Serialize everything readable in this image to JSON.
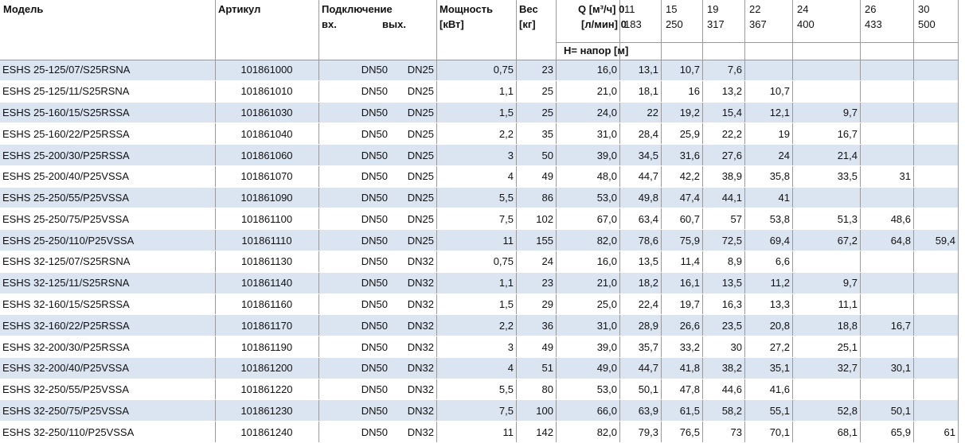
{
  "header": {
    "model": "Модель",
    "article": "Артикул",
    "connection": "Подключение",
    "conn_in": "вх.",
    "conn_out": "вых.",
    "power": "Мощность",
    "power_unit": "[кВт]",
    "weight": "Вес",
    "weight_unit": "[кг]",
    "q_m3h": "Q [м³/ч] 0",
    "q_lmin": "[л/мин] 0",
    "flow": [
      {
        "m3h": "11",
        "lmin": "183"
      },
      {
        "m3h": "15",
        "lmin": "250"
      },
      {
        "m3h": "19",
        "lmin": "317"
      },
      {
        "m3h": "22",
        "lmin": "367"
      },
      {
        "m3h": "24",
        "lmin": "400"
      },
      {
        "m3h": "26",
        "lmin": "433"
      },
      {
        "m3h": "30",
        "lmin": "500"
      }
    ],
    "head": "H= напор [м]"
  },
  "rows": [
    [
      "ESHS 25-125/07/S25RSNA",
      "101861000",
      "DN50",
      "DN25",
      "0,75",
      "23",
      "16,0",
      "13,1",
      "10,7",
      "7,6"
    ],
    [
      "ESHS 25-125/11/S25RSNA",
      "101861010",
      "DN50",
      "DN25",
      "1,1",
      "25",
      "21,0",
      "18,1",
      "16",
      "13,2",
      "10,7"
    ],
    [
      "ESHS 25-160/15/S25RSSA",
      "101861030",
      "DN50",
      "DN25",
      "1,5",
      "25",
      "24,0",
      "22",
      "19,2",
      "15,4",
      "12,1",
      "9,7"
    ],
    [
      "ESHS 25-160/22/P25RSSA",
      "101861040",
      "DN50",
      "DN25",
      "2,2",
      "35",
      "31,0",
      "28,4",
      "25,9",
      "22,2",
      "19",
      "16,7"
    ],
    [
      "ESHS 25-200/30/P25RSSA",
      "101861060",
      "DN50",
      "DN25",
      "3",
      "50",
      "39,0",
      "34,5",
      "31,6",
      "27,6",
      "24",
      "21,4"
    ],
    [
      "ESHS 25-200/40/P25VSSA",
      "101861070",
      "DN50",
      "DN25",
      "4",
      "49",
      "48,0",
      "44,7",
      "42,2",
      "38,9",
      "35,8",
      "33,5",
      "31"
    ],
    [
      "ESHS 25-250/55/P25VSSA",
      "101861090",
      "DN50",
      "DN25",
      "5,5",
      "86",
      "53,0",
      "49,8",
      "47,4",
      "44,1",
      "41"
    ],
    [
      "ESHS 25-250/75/P25VSSA",
      "101861100",
      "DN50",
      "DN25",
      "7,5",
      "102",
      "67,0",
      "63,4",
      "60,7",
      "57",
      "53,8",
      "51,3",
      "48,6"
    ],
    [
      "ESHS 25-250/110/P25VSSA",
      "101861110",
      "DN50",
      "DN25",
      "11",
      "155",
      "82,0",
      "78,6",
      "75,9",
      "72,5",
      "69,4",
      "67,2",
      "64,8",
      "59,4"
    ],
    [
      "ESHS 32-125/07/S25RSNA",
      "101861130",
      "DN50",
      "DN32",
      "0,75",
      "24",
      "16,0",
      "13,5",
      "11,4",
      "8,9",
      "6,6"
    ],
    [
      "ESHS 32-125/11/S25RSNA",
      "101861140",
      "DN50",
      "DN32",
      "1,1",
      "23",
      "21,0",
      "18,2",
      "16,1",
      "13,5",
      "11,2",
      "9,7"
    ],
    [
      "ESHS 32-160/15/S25RSSA",
      "101861160",
      "DN50",
      "DN32",
      "1,5",
      "29",
      "25,0",
      "22,4",
      "19,7",
      "16,3",
      "13,3",
      "11,1"
    ],
    [
      "ESHS 32-160/22/P25RSSA",
      "101861170",
      "DN50",
      "DN32",
      "2,2",
      "36",
      "31,0",
      "28,9",
      "26,6",
      "23,5",
      "20,8",
      "18,8",
      "16,7"
    ],
    [
      "ESHS 32-200/30/P25RSSA",
      "101861190",
      "DN50",
      "DN32",
      "3",
      "49",
      "39,0",
      "35,7",
      "33,2",
      "30",
      "27,2",
      "25,1"
    ],
    [
      "ESHS 32-200/40/P25VSSA",
      "101861200",
      "DN50",
      "DN32",
      "4",
      "51",
      "49,0",
      "44,7",
      "41,8",
      "38,2",
      "35,1",
      "32,7",
      "30,1"
    ],
    [
      "ESHS 32-250/55/P25VSSA",
      "101861220",
      "DN50",
      "DN32",
      "5,5",
      "80",
      "53,0",
      "50,1",
      "47,8",
      "44,6",
      "41,6"
    ],
    [
      "ESHS 32-250/75/P25VSSA",
      "101861230",
      "DN50",
      "DN32",
      "7,5",
      "100",
      "66,0",
      "63,9",
      "61,5",
      "58,2",
      "55,1",
      "52,8",
      "50,1"
    ],
    [
      "ESHS 32-250/110/P25VSSA",
      "101861240",
      "DN50",
      "DN32",
      "11",
      "142",
      "82,0",
      "79,3",
      "76,5",
      "73",
      "70,1",
      "68,1",
      "65,9",
      "61"
    ]
  ]
}
